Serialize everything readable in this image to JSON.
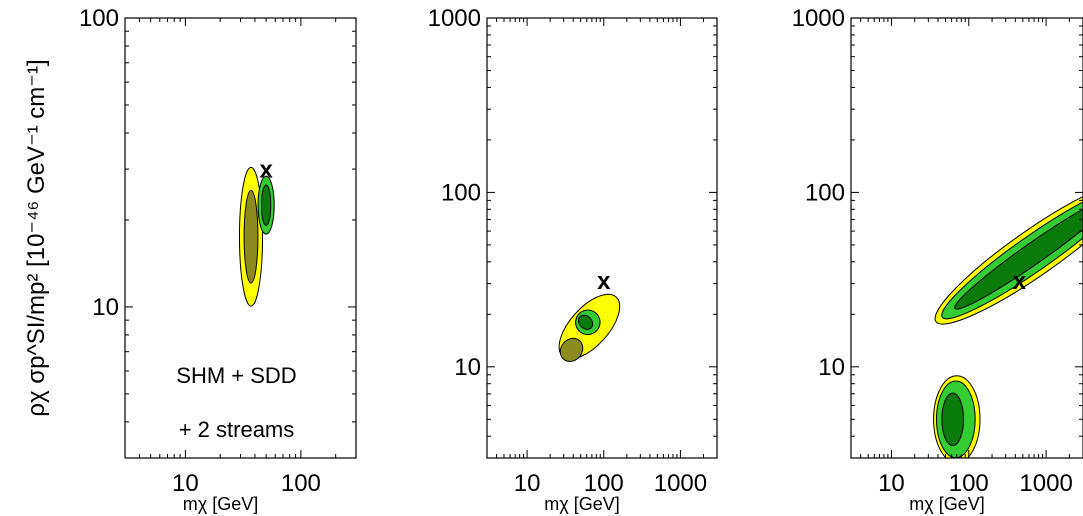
{
  "chart_data": [
    {
      "type": "contour",
      "xscale": "log",
      "yscale": "log",
      "xlim": [
        3,
        300
      ],
      "ylim": [
        3,
        100
      ],
      "x_ticks": [
        10,
        100
      ],
      "y_ticks": [
        10,
        100
      ],
      "xlabel": "mχ [GeV]",
      "ylabel": "ρχ σp^SI/mp² [10⁻⁴⁶ GeV⁻¹ cm⁻¹]",
      "annotations": [
        "SHM + SDD",
        "+ 2 streams"
      ],
      "marker": {
        "label": "x",
        "x": 50,
        "y": 28
      },
      "regions": [
        {
          "color": "#ffff00",
          "level": "outer",
          "cx": 37,
          "cy": 17.5,
          "ax": 0.1,
          "ay": 0.24,
          "rot": 0
        },
        {
          "color": "#8c8c1e",
          "level": "inner",
          "cx": 37,
          "cy": 17.5,
          "ax": 0.06,
          "ay": 0.16,
          "rot": 0
        },
        {
          "color": "#33cc33",
          "level": "outer",
          "cx": 50,
          "cy": 22.5,
          "ax": 0.07,
          "ay": 0.1,
          "rot": 0
        },
        {
          "color": "#0a7a0a",
          "level": "inner",
          "cx": 50,
          "cy": 22.5,
          "ax": 0.04,
          "ay": 0.07,
          "rot": 0
        }
      ]
    },
    {
      "type": "contour",
      "xscale": "log",
      "yscale": "log",
      "xlim": [
        3,
        3000
      ],
      "ylim": [
        3,
        1000
      ],
      "x_ticks": [
        10,
        100,
        1000
      ],
      "y_ticks": [
        10,
        100,
        1000
      ],
      "xlabel": "mχ [GeV]",
      "marker": {
        "label": "x",
        "x": 100,
        "y": 28
      },
      "regions": [
        {
          "color": "#ffff00",
          "level": "outer",
          "cx": 65,
          "cy": 17,
          "ax": 0.52,
          "ay": 0.11,
          "rot": 48
        },
        {
          "color": "#8c8c1e",
          "level": "inner",
          "cx": 38,
          "cy": 12.5,
          "ax": 0.16,
          "ay": 0.06,
          "rot": 50
        },
        {
          "color": "#33cc33",
          "level": "outer",
          "cx": 62,
          "cy": 18,
          "ax": 0.16,
          "ay": 0.07,
          "rot": 40
        },
        {
          "color": "#0a7a0a",
          "level": "inner",
          "cx": 58,
          "cy": 18,
          "ax": 0.08,
          "ay": 0.045,
          "rot": 45
        }
      ]
    },
    {
      "type": "contour",
      "xscale": "log",
      "yscale": "log",
      "xlim": [
        3,
        3000
      ],
      "ylim": [
        3,
        1000
      ],
      "x_ticks": [
        10,
        100,
        1000
      ],
      "y_ticks": [
        10,
        100,
        1000
      ],
      "xlabel": "mχ [GeV]",
      "marker": {
        "label": "x",
        "x": 450,
        "y": 28
      },
      "regions": [
        {
          "color": "#ffff00",
          "level": "outer",
          "cx": 700,
          "cy": 45,
          "ax": 1.55,
          "ay": 0.13,
          "rot": 35
        },
        {
          "color": "#33cc33",
          "level": "outer",
          "cx": 700,
          "cy": 45,
          "ax": 1.45,
          "ay": 0.1,
          "rot": 35
        },
        {
          "color": "#0a7a0a",
          "level": "inner",
          "cx": 700,
          "cy": 45,
          "ax": 1.25,
          "ay": 0.06,
          "rot": 35
        },
        {
          "color": "#ffff00",
          "level": "outer",
          "cx": 70,
          "cy": 5,
          "ax": 0.3,
          "ay": 0.25,
          "rot": 0
        },
        {
          "color": "#33cc33",
          "level": "outer",
          "cx": 68,
          "cy": 5,
          "ax": 0.25,
          "ay": 0.22,
          "rot": 0
        },
        {
          "color": "#0a7a0a",
          "level": "inner",
          "cx": 62,
          "cy": 5,
          "ax": 0.14,
          "ay": 0.15,
          "rot": 0
        }
      ]
    }
  ]
}
